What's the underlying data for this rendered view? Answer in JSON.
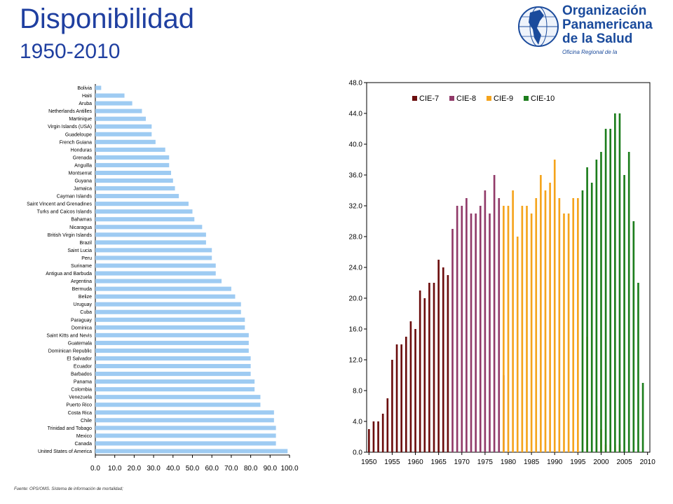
{
  "header": {
    "title": "Disponibilidad",
    "subtitle": "1950-2010"
  },
  "logo": {
    "line1": "Organización",
    "line2": "Panamericana",
    "line3": "de la Salud",
    "tagline": "Oficina Regional de la"
  },
  "source": "Fuente: OPS/OMS. Sistema de información de mortalidad;",
  "colors": {
    "title": "#1f3fa0",
    "left_bar": "#9ecbf2",
    "cie7": "#6b0d0d",
    "cie8": "#913a69",
    "cie9": "#f5a41c",
    "cie10": "#1c7d1c"
  },
  "chart_data": [
    {
      "type": "bar",
      "orientation": "horizontal",
      "categories": [
        "Bolivia",
        "Haiti",
        "Aruba",
        "Netherlands Antilles",
        "Martinique",
        "Virgin Islands (USA)",
        "Guadeloupe",
        "French Guiana",
        "Honduras",
        "Grenada",
        "Anguilla",
        "Montserrat",
        "Guyana",
        "Jamaica",
        "Cayman Islands",
        "Saint Vincent and Grenadines",
        "Turks and Caicos Islands",
        "Bahamas",
        "Nicaragua",
        "British Virgin Islands",
        "Brazil",
        "Saint Lucia",
        "Peru",
        "Suriname",
        "Antigua and Barbuda",
        "Argentina",
        "Bermuda",
        "Belize",
        "Uruguay",
        "Cuba",
        "Paraguay",
        "Dominica",
        "Saint Kitts and Nevis",
        "Guatemala",
        "Dominican Republic",
        "El Salvador",
        "Ecuador",
        "Barbados",
        "Panama",
        "Colombia",
        "Venezuela",
        "Puerto Rico",
        "Costa Rica",
        "Chile",
        "Trinidad and Tobago",
        "Mexico",
        "Canada",
        "United States of America"
      ],
      "values": [
        3,
        15,
        19,
        24,
        26,
        29,
        29,
        31,
        36,
        38,
        38,
        39,
        40,
        41,
        43,
        48,
        50,
        51,
        55,
        57,
        57,
        60,
        60,
        62,
        62,
        65,
        70,
        72,
        75,
        75,
        77,
        77,
        79,
        79,
        79,
        80,
        80,
        80,
        82,
        82,
        85,
        85,
        92,
        92,
        93,
        93,
        93,
        99
      ],
      "xlim": [
        0,
        100
      ],
      "xticks": [
        "0.0",
        "10.0",
        "20.0",
        "30.0",
        "40.0",
        "50.0",
        "60.0",
        "70.0",
        "80.0",
        "90.0",
        "100.0"
      ]
    },
    {
      "type": "bar",
      "x": [
        1950,
        1951,
        1952,
        1953,
        1954,
        1955,
        1956,
        1957,
        1958,
        1959,
        1960,
        1961,
        1962,
        1963,
        1964,
        1965,
        1966,
        1967,
        1968,
        1969,
        1970,
        1971,
        1972,
        1973,
        1974,
        1975,
        1976,
        1977,
        1978,
        1979,
        1980,
        1981,
        1982,
        1983,
        1984,
        1985,
        1986,
        1987,
        1988,
        1989,
        1990,
        1991,
        1992,
        1993,
        1994,
        1995,
        1996,
        1997,
        1998,
        1999,
        2000,
        2001,
        2002,
        2003,
        2004,
        2005,
        2006,
        2007,
        2008,
        2009
      ],
      "series": [
        {
          "name": "CIE-7",
          "values": [
            3,
            4,
            4,
            5,
            7,
            12,
            14,
            14,
            15,
            17,
            16,
            21,
            20,
            22,
            22,
            25,
            24,
            23,
            0,
            0,
            0,
            0,
            0,
            0,
            0,
            0,
            0,
            0,
            0,
            0,
            0,
            0,
            0,
            0,
            0,
            0,
            0,
            0,
            0,
            0,
            0,
            0,
            0,
            0,
            0,
            0,
            0,
            0,
            0,
            0,
            0,
            0,
            0,
            0,
            0,
            0,
            0,
            0,
            0,
            0
          ]
        },
        {
          "name": "CIE-8",
          "values": [
            0,
            0,
            0,
            0,
            0,
            0,
            0,
            0,
            0,
            0,
            0,
            0,
            0,
            0,
            0,
            0,
            0,
            0,
            29,
            32,
            32,
            33,
            31,
            31,
            32,
            34,
            31,
            36,
            33,
            10,
            0,
            0,
            0,
            0,
            0,
            0,
            0,
            0,
            0,
            0,
            0,
            0,
            0,
            0,
            0,
            0,
            0,
            0,
            0,
            0,
            0,
            0,
            0,
            0,
            0,
            0,
            0,
            0,
            0,
            0
          ]
        },
        {
          "name": "CIE-9",
          "values": [
            0,
            0,
            0,
            0,
            0,
            0,
            0,
            0,
            0,
            0,
            0,
            0,
            0,
            0,
            0,
            0,
            0,
            0,
            0,
            0,
            0,
            0,
            0,
            0,
            0,
            0,
            0,
            0,
            0,
            32,
            32,
            34,
            28,
            32,
            32,
            31,
            33,
            36,
            34,
            35,
            38,
            33,
            31,
            31,
            33,
            33,
            0,
            15,
            0,
            6,
            3,
            1,
            1,
            1,
            1,
            0,
            0,
            0,
            0,
            0
          ]
        },
        {
          "name": "CIE-10",
          "values": [
            0,
            0,
            0,
            0,
            0,
            0,
            0,
            0,
            0,
            0,
            0,
            0,
            0,
            0,
            0,
            0,
            0,
            0,
            0,
            0,
            0,
            0,
            0,
            0,
            0,
            0,
            0,
            0,
            0,
            0,
            0,
            0,
            0,
            0,
            0,
            0,
            0,
            0,
            0,
            0,
            0,
            0,
            0,
            0,
            0,
            0,
            34,
            37,
            35,
            38,
            39,
            42,
            42,
            44,
            44,
            36,
            39,
            30,
            22,
            9
          ]
        }
      ],
      "ylim": [
        0,
        48
      ],
      "yticks": [
        "0.0",
        "4.0",
        "8.0",
        "12.0",
        "16.0",
        "20.0",
        "24.0",
        "28.0",
        "32.0",
        "36.0",
        "40.0",
        "44.0",
        "48.0"
      ],
      "xticks": [
        "1950",
        "1955",
        "1960",
        "1965",
        "1970",
        "1975",
        "1980",
        "1985",
        "1990",
        "1995",
        "2000",
        "2005",
        "2010"
      ],
      "legend_position": "top-left"
    }
  ]
}
